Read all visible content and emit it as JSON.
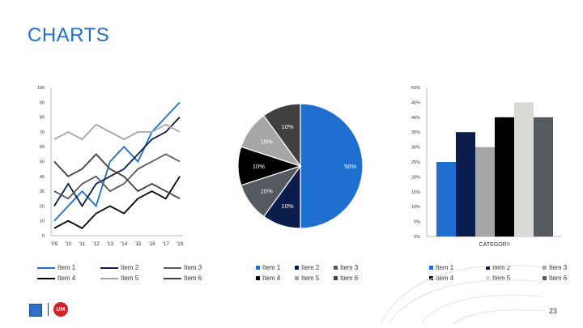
{
  "page": {
    "title": "CHARTS",
    "page_number": "23",
    "logo_right_text": "UM"
  },
  "chart_data": [
    {
      "type": "line",
      "x": [
        "'09",
        "'10",
        "'11",
        "'12",
        "'13",
        "'14",
        "'15",
        "'16",
        "'17",
        "'18"
      ],
      "ylim": [
        0,
        100
      ],
      "yticks": [
        0,
        10,
        20,
        30,
        40,
        50,
        60,
        70,
        80,
        90,
        100
      ],
      "grid": false,
      "legend_position": "bottom",
      "series": [
        {
          "name": "Item 1",
          "color": "#1f6fd1",
          "values": [
            10,
            20,
            30,
            20,
            50,
            60,
            50,
            70,
            80,
            90
          ]
        },
        {
          "name": "Item 2",
          "color": "#0b1d4d",
          "values": [
            20,
            35,
            20,
            35,
            40,
            45,
            55,
            65,
            70,
            80
          ]
        },
        {
          "name": "Item 3",
          "color": "#555a60",
          "values": [
            30,
            25,
            35,
            40,
            30,
            35,
            45,
            50,
            55,
            50
          ]
        },
        {
          "name": "Item 4",
          "color": "#000000",
          "values": [
            5,
            10,
            5,
            15,
            20,
            15,
            25,
            30,
            25,
            40
          ]
        },
        {
          "name": "Item 5",
          "color": "#a6a6a6",
          "values": [
            65,
            70,
            65,
            75,
            70,
            65,
            70,
            70,
            75,
            70
          ]
        },
        {
          "name": "Item 6",
          "color": "#404040",
          "values": [
            50,
            40,
            45,
            55,
            45,
            40,
            30,
            35,
            30,
            25
          ]
        }
      ]
    },
    {
      "type": "pie",
      "legend_position": "bottom",
      "slices": [
        {
          "name": "Item 1",
          "value": 50,
          "label": "50%",
          "color": "#1f6fd1"
        },
        {
          "name": "Item 2",
          "value": 10,
          "label": "10%",
          "color": "#0b1d4d"
        },
        {
          "name": "Item 3",
          "value": 10,
          "label": "10%",
          "color": "#555a60"
        },
        {
          "name": "Item 4",
          "value": 10,
          "label": "10%",
          "color": "#000000"
        },
        {
          "name": "Item 5",
          "value": 10,
          "label": "10%",
          "color": "#a6a6a6"
        },
        {
          "name": "Item 6",
          "value": 10,
          "label": "10%",
          "color": "#404040"
        }
      ]
    },
    {
      "type": "bar",
      "categories": [
        "CATEGORY"
      ],
      "ylim": [
        0,
        50
      ],
      "yticks": [
        "0%",
        "5%",
        "10%",
        "15%",
        "20%",
        "25%",
        "30%",
        "35%",
        "40%",
        "45%",
        "50%"
      ],
      "legend_position": "bottom",
      "series": [
        {
          "name": "Item 1",
          "color": "#1f6fd1",
          "values": [
            25
          ]
        },
        {
          "name": "Item 2",
          "color": "#0b1d4d",
          "values": [
            35
          ]
        },
        {
          "name": "Item 3",
          "color": "#a6a6a6",
          "values": [
            30
          ]
        },
        {
          "name": "Item 4",
          "color": "#000000",
          "values": [
            40
          ]
        },
        {
          "name": "Item 5",
          "color": "#d9d9d6",
          "values": [
            45
          ]
        },
        {
          "name": "Item 6",
          "color": "#555a60",
          "values": [
            40
          ]
        }
      ]
    }
  ]
}
